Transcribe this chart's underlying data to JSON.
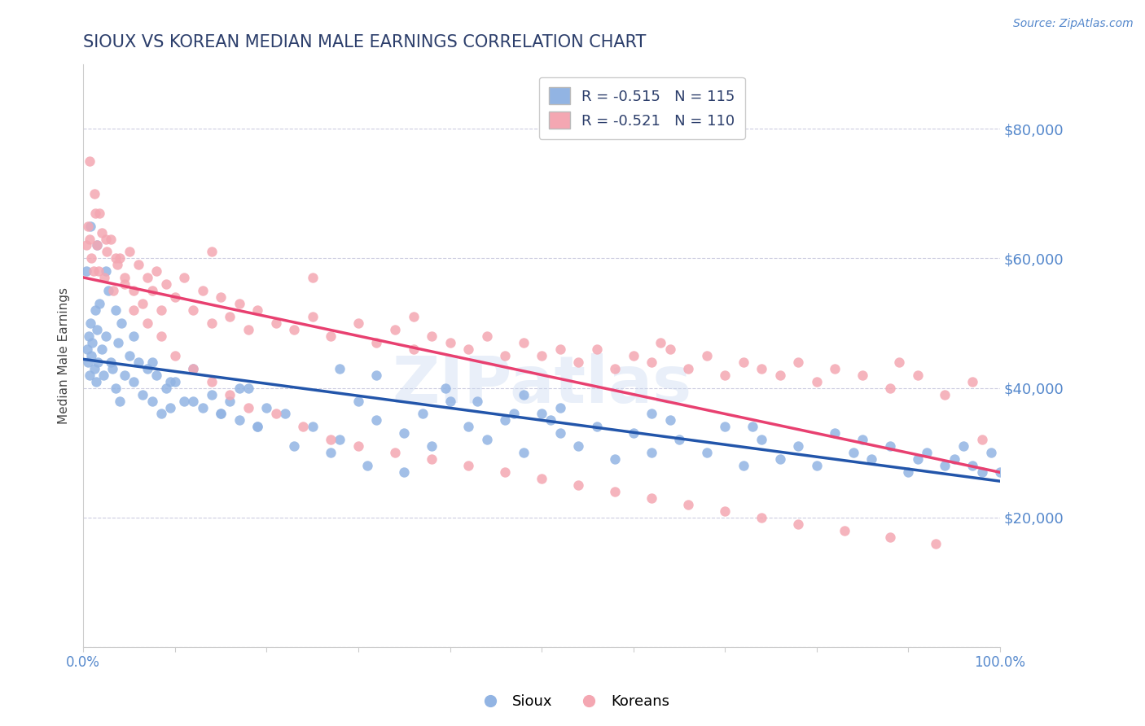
{
  "title": "SIOUX VS KOREAN MEDIAN MALE EARNINGS CORRELATION CHART",
  "source_text": "Source: ZipAtlas.com",
  "ylabel": "Median Male Earnings",
  "xlim": [
    0.0,
    1.0
  ],
  "ylim": [
    0,
    90000
  ],
  "yticks": [
    0,
    20000,
    40000,
    60000,
    80000
  ],
  "ytick_labels": [
    "",
    "$20,000",
    "$40,000",
    "$60,000",
    "$80,000"
  ],
  "xticks": [
    0.0,
    0.1,
    0.2,
    0.3,
    0.4,
    0.5,
    0.6,
    0.7,
    0.8,
    0.9,
    1.0
  ],
  "sioux_color": "#92b4e3",
  "korean_color": "#f4a7b2",
  "sioux_line_color": "#2255aa",
  "korean_line_color": "#e84070",
  "sioux_R": -0.515,
  "sioux_N": 115,
  "korean_R": -0.521,
  "korean_N": 110,
  "watermark": "ZIPatlas",
  "legend_label_sioux": "Sioux",
  "legend_label_korean": "Koreans",
  "axis_color": "#5588cc",
  "title_color": "#2c3e6b",
  "sioux_x": [
    0.004,
    0.005,
    0.006,
    0.007,
    0.008,
    0.009,
    0.01,
    0.012,
    0.013,
    0.014,
    0.015,
    0.016,
    0.018,
    0.02,
    0.022,
    0.025,
    0.027,
    0.03,
    0.032,
    0.035,
    0.038,
    0.04,
    0.042,
    0.045,
    0.05,
    0.055,
    0.06,
    0.065,
    0.07,
    0.075,
    0.08,
    0.085,
    0.09,
    0.095,
    0.1,
    0.11,
    0.12,
    0.13,
    0.14,
    0.15,
    0.16,
    0.17,
    0.18,
    0.19,
    0.2,
    0.22,
    0.25,
    0.28,
    0.3,
    0.32,
    0.35,
    0.37,
    0.38,
    0.4,
    0.42,
    0.44,
    0.46,
    0.48,
    0.5,
    0.52,
    0.54,
    0.56,
    0.58,
    0.6,
    0.62,
    0.64,
    0.65,
    0.68,
    0.7,
    0.72,
    0.74,
    0.76,
    0.78,
    0.8,
    0.82,
    0.84,
    0.86,
    0.88,
    0.9,
    0.92,
    0.94,
    0.95,
    0.96,
    0.97,
    0.98,
    0.99,
    1.0,
    0.17,
    0.28,
    0.32,
    0.48,
    0.52,
    0.62,
    0.73,
    0.85,
    0.91,
    0.003,
    0.008,
    0.015,
    0.025,
    0.035,
    0.055,
    0.075,
    0.095,
    0.12,
    0.15,
    0.19,
    0.23,
    0.27,
    0.31,
    0.35,
    0.395,
    0.43,
    0.47,
    0.51
  ],
  "sioux_y": [
    46000,
    44000,
    48000,
    42000,
    50000,
    45000,
    47000,
    43000,
    52000,
    41000,
    49000,
    44000,
    53000,
    46000,
    42000,
    48000,
    55000,
    44000,
    43000,
    40000,
    47000,
    38000,
    50000,
    42000,
    45000,
    41000,
    44000,
    39000,
    43000,
    38000,
    42000,
    36000,
    40000,
    37000,
    41000,
    38000,
    43000,
    37000,
    39000,
    36000,
    38000,
    35000,
    40000,
    34000,
    37000,
    36000,
    34000,
    32000,
    38000,
    35000,
    33000,
    36000,
    31000,
    38000,
    34000,
    32000,
    35000,
    30000,
    36000,
    33000,
    31000,
    34000,
    29000,
    33000,
    30000,
    35000,
    32000,
    30000,
    34000,
    28000,
    32000,
    29000,
    31000,
    28000,
    33000,
    30000,
    29000,
    31000,
    27000,
    30000,
    28000,
    29000,
    31000,
    28000,
    27000,
    30000,
    27000,
    40000,
    43000,
    42000,
    39000,
    37000,
    36000,
    34000,
    32000,
    29000,
    58000,
    65000,
    62000,
    58000,
    52000,
    48000,
    44000,
    41000,
    38000,
    36000,
    34000,
    31000,
    30000,
    28000,
    27000,
    40000,
    38000,
    36000,
    35000
  ],
  "korean_x": [
    0.003,
    0.005,
    0.007,
    0.009,
    0.011,
    0.013,
    0.015,
    0.017,
    0.02,
    0.023,
    0.026,
    0.03,
    0.033,
    0.037,
    0.04,
    0.045,
    0.05,
    0.055,
    0.06,
    0.065,
    0.07,
    0.075,
    0.08,
    0.085,
    0.09,
    0.1,
    0.11,
    0.12,
    0.13,
    0.14,
    0.15,
    0.16,
    0.17,
    0.18,
    0.19,
    0.21,
    0.23,
    0.25,
    0.27,
    0.3,
    0.32,
    0.34,
    0.36,
    0.38,
    0.4,
    0.42,
    0.44,
    0.46,
    0.48,
    0.5,
    0.52,
    0.54,
    0.56,
    0.58,
    0.6,
    0.62,
    0.64,
    0.66,
    0.68,
    0.7,
    0.72,
    0.74,
    0.76,
    0.78,
    0.8,
    0.82,
    0.85,
    0.88,
    0.91,
    0.94,
    0.97,
    0.007,
    0.012,
    0.018,
    0.025,
    0.035,
    0.045,
    0.055,
    0.07,
    0.085,
    0.1,
    0.12,
    0.14,
    0.16,
    0.18,
    0.21,
    0.24,
    0.27,
    0.3,
    0.34,
    0.38,
    0.42,
    0.46,
    0.5,
    0.54,
    0.58,
    0.62,
    0.66,
    0.7,
    0.74,
    0.78,
    0.83,
    0.88,
    0.93,
    0.98,
    0.89,
    0.63,
    0.36,
    0.25,
    0.14
  ],
  "korean_y": [
    62000,
    65000,
    63000,
    60000,
    58000,
    67000,
    62000,
    58000,
    64000,
    57000,
    61000,
    63000,
    55000,
    59000,
    60000,
    57000,
    61000,
    55000,
    59000,
    53000,
    57000,
    55000,
    58000,
    52000,
    56000,
    54000,
    57000,
    52000,
    55000,
    50000,
    54000,
    51000,
    53000,
    49000,
    52000,
    50000,
    49000,
    51000,
    48000,
    50000,
    47000,
    49000,
    46000,
    48000,
    47000,
    46000,
    48000,
    45000,
    47000,
    45000,
    46000,
    44000,
    46000,
    43000,
    45000,
    44000,
    46000,
    43000,
    45000,
    42000,
    44000,
    43000,
    42000,
    44000,
    41000,
    43000,
    42000,
    40000,
    42000,
    39000,
    41000,
    75000,
    70000,
    67000,
    63000,
    60000,
    56000,
    52000,
    50000,
    48000,
    45000,
    43000,
    41000,
    39000,
    37000,
    36000,
    34000,
    32000,
    31000,
    30000,
    29000,
    28000,
    27000,
    26000,
    25000,
    24000,
    23000,
    22000,
    21000,
    20000,
    19000,
    18000,
    17000,
    16000,
    32000,
    44000,
    47000,
    51000,
    57000,
    61000
  ]
}
